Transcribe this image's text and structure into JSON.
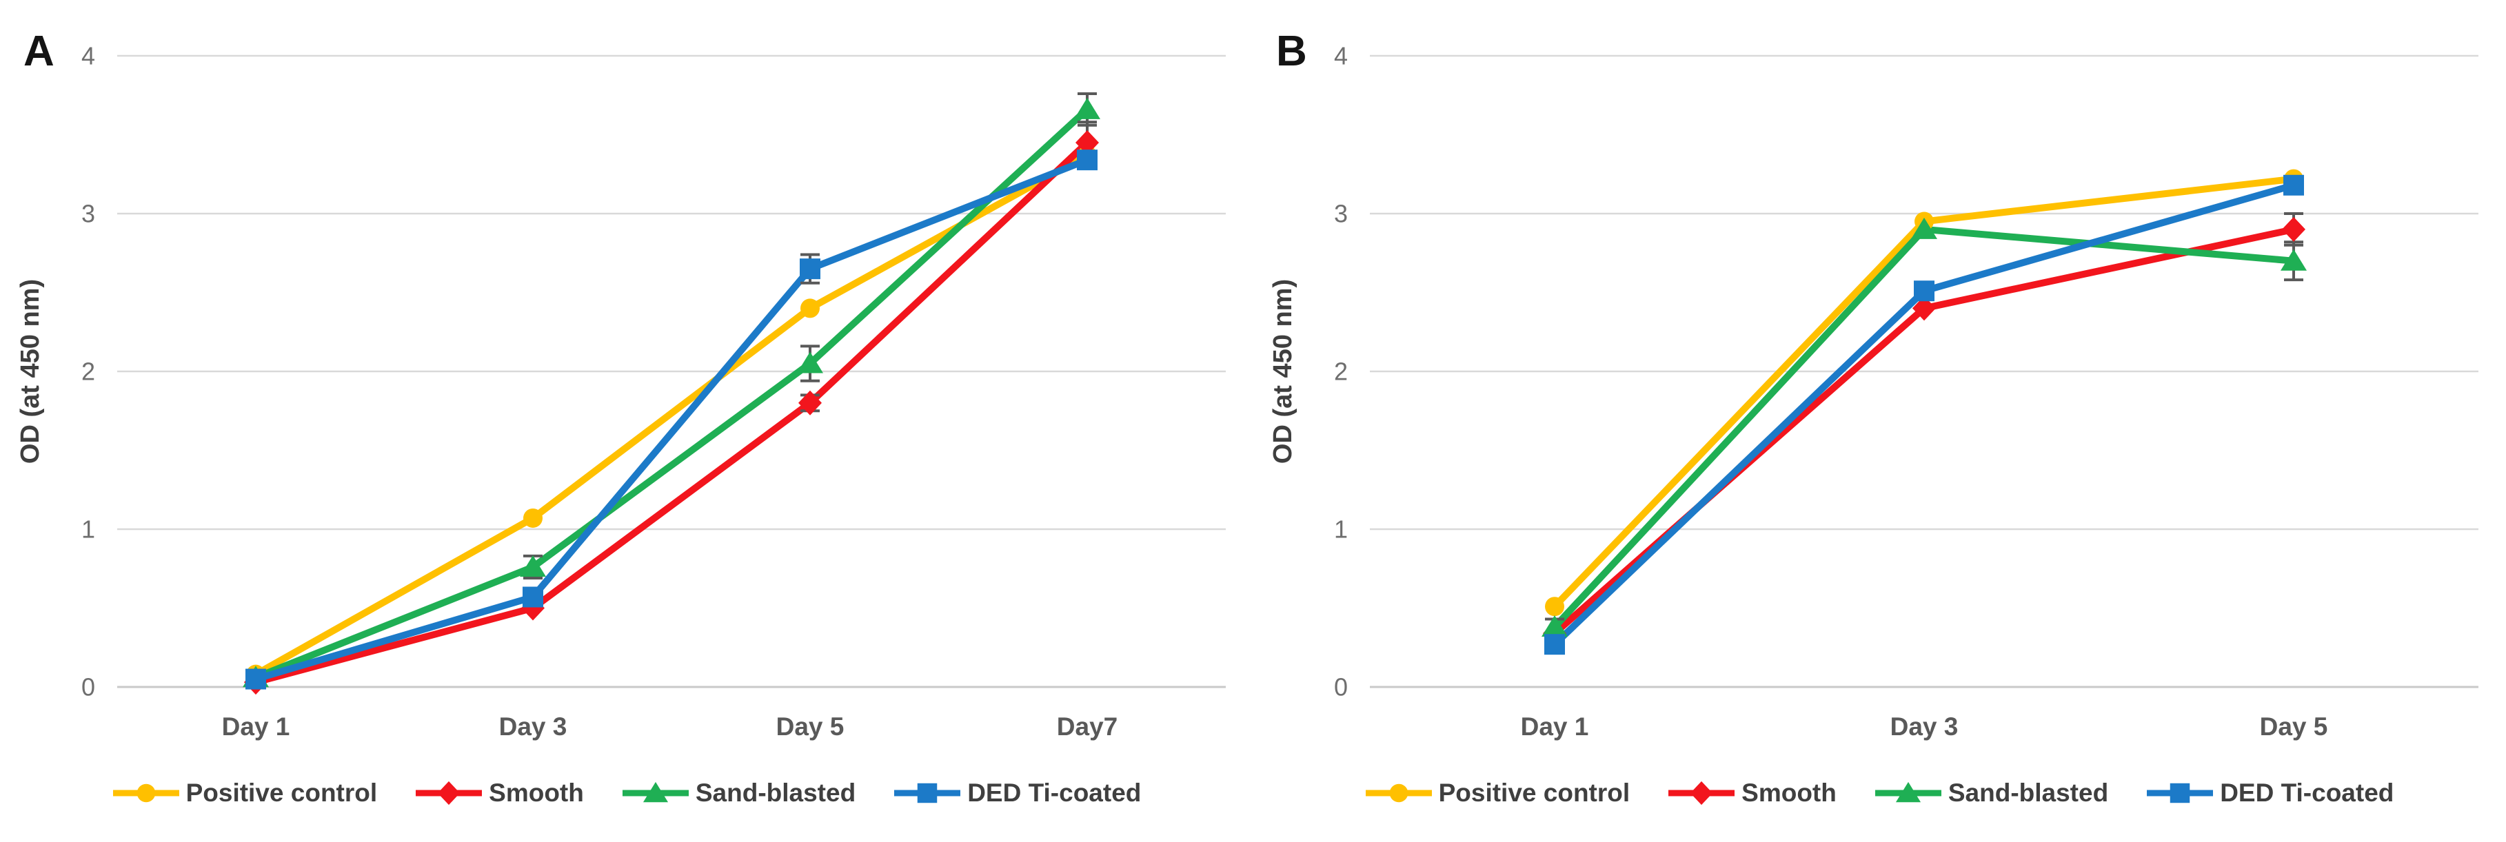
{
  "figure": {
    "panels": [
      {
        "letter": "A"
      },
      {
        "letter": "B"
      }
    ],
    "colors": {
      "gridline": "#d9d9d9",
      "baseline": "#c9c9c9",
      "error_bar": "#595959",
      "tick_text": "#6e6e6e",
      "label_text": "#3f3f3f"
    }
  },
  "chart_data": [
    {
      "type": "line",
      "panel": "A",
      "title": "",
      "xlabel": "",
      "ylabel": "OD (at 450 nm)",
      "ylim": [
        0,
        4
      ],
      "yticks": [
        0,
        1,
        2,
        3,
        4
      ],
      "grid": "horizontal-only",
      "legend_position": "bottom",
      "categories": [
        "Day 1",
        "Day 3",
        "Day 5",
        "Day7"
      ],
      "series": [
        {
          "name": "Positive control",
          "color": "#FFC000",
          "marker": "circle",
          "values": [
            0.08,
            1.07,
            2.4,
            3.37
          ],
          "errors": [
            0,
            0,
            0,
            0
          ]
        },
        {
          "name": "Smooth",
          "color": "#F2151D",
          "marker": "diamond",
          "values": [
            0.03,
            0.5,
            1.8,
            3.45
          ],
          "errors": [
            0,
            0,
            0.05,
            0.13
          ]
        },
        {
          "name": "Sand-blasted",
          "color": "#1FAF54",
          "marker": "triangle",
          "values": [
            0.06,
            0.76,
            2.05,
            3.66
          ],
          "errors": [
            0,
            0.07,
            0.11,
            0.1
          ]
        },
        {
          "name": "DED Ti-coated",
          "color": "#1C7AC8",
          "marker": "square",
          "values": [
            0.05,
            0.57,
            2.65,
            3.34
          ],
          "errors": [
            0,
            0,
            0.09,
            0
          ]
        }
      ]
    },
    {
      "type": "line",
      "panel": "B",
      "title": "",
      "xlabel": "",
      "ylabel": "OD (at 450 nm)",
      "ylim": [
        0,
        4
      ],
      "yticks": [
        0,
        1,
        2,
        3,
        4
      ],
      "grid": "horizontal-only",
      "legend_position": "bottom",
      "categories": [
        "Day 1",
        "Day 3",
        "Day 5"
      ],
      "series": [
        {
          "name": "Positive control",
          "color": "#FFC000",
          "marker": "circle",
          "values": [
            0.51,
            2.95,
            3.22
          ],
          "errors": [
            0,
            0,
            0
          ]
        },
        {
          "name": "Smooth",
          "color": "#F2151D",
          "marker": "diamond",
          "values": [
            0.34,
            2.4,
            2.9
          ],
          "errors": [
            0,
            0,
            0.1
          ]
        },
        {
          "name": "Sand-blasted",
          "color": "#1FAF54",
          "marker": "triangle",
          "values": [
            0.38,
            2.9,
            2.7
          ],
          "errors": [
            0.05,
            0,
            0.12
          ]
        },
        {
          "name": "DED Ti-coated",
          "color": "#1C7AC8",
          "marker": "square",
          "values": [
            0.27,
            2.51,
            3.18
          ],
          "errors": [
            0,
            0,
            0
          ]
        }
      ]
    }
  ]
}
